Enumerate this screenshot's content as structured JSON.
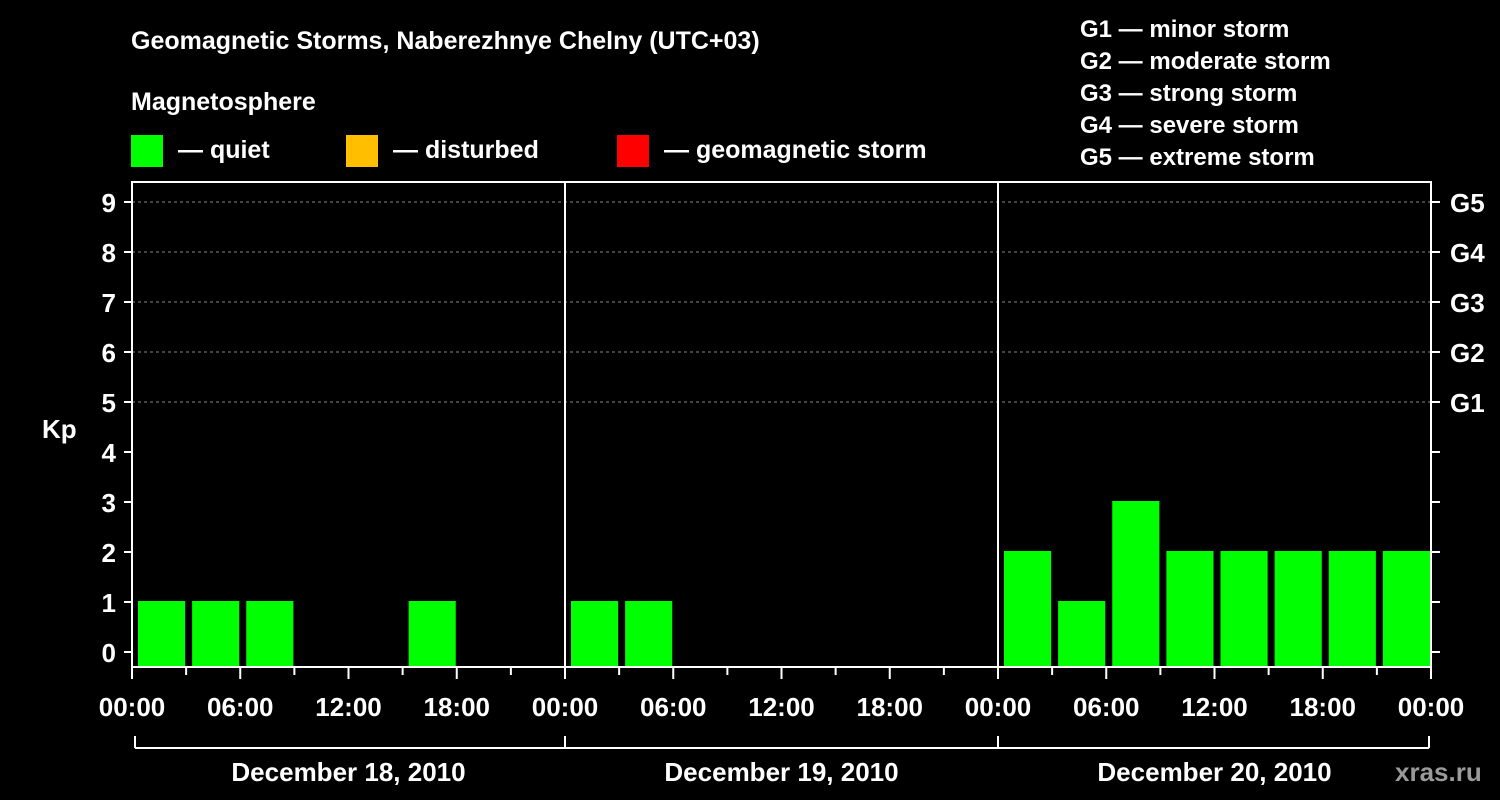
{
  "chart_data": {
    "type": "bar",
    "title": "Geomagnetic Storms, Naberezhnye Chelny (UTC+03)",
    "ylabel": "Kp",
    "ylim": [
      0,
      9
    ],
    "y_ticks": [
      "0",
      "1",
      "2",
      "3",
      "4",
      "5",
      "6",
      "7",
      "8",
      "9"
    ],
    "gridlines": [
      5,
      6,
      7,
      8,
      9
    ],
    "storm_levels": [
      {
        "kp": 5,
        "label": "G1"
      },
      {
        "kp": 6,
        "label": "G2"
      },
      {
        "kp": 7,
        "label": "G3"
      },
      {
        "kp": 8,
        "label": "G4"
      },
      {
        "kp": 9,
        "label": "G5"
      }
    ],
    "legend": {
      "heading": "Magnetosphere",
      "items": [
        {
          "label": "— quiet",
          "color": "#00ff00"
        },
        {
          "label": "— disturbed",
          "color": "#ffbf00"
        },
        {
          "label": "— geomagnetic storm",
          "color": "#ff0000"
        }
      ]
    },
    "storm_scale": [
      "G1 — minor storm",
      "G2 — moderate storm",
      "G3 — strong storm",
      "G4 — severe storm",
      "G5 — extreme storm"
    ],
    "x_ticks": [
      "00:00",
      "06:00",
      "12:00",
      "18:00",
      "00:00",
      "06:00",
      "12:00",
      "18:00",
      "00:00",
      "06:00",
      "12:00",
      "18:00",
      "00:00"
    ],
    "days": [
      "December 18, 2010",
      "December 19, 2010",
      "December 20, 2010"
    ],
    "intervals_per_day": 8,
    "interval_hours": 3,
    "series": [
      {
        "values": [
          1,
          1,
          1,
          0,
          0,
          1,
          0,
          0,
          1,
          1,
          0,
          0,
          0,
          0,
          0,
          0,
          2,
          1,
          3,
          2,
          2,
          2,
          2,
          2
        ],
        "color": "#00ff00"
      }
    ],
    "watermark": "xras.ru"
  }
}
